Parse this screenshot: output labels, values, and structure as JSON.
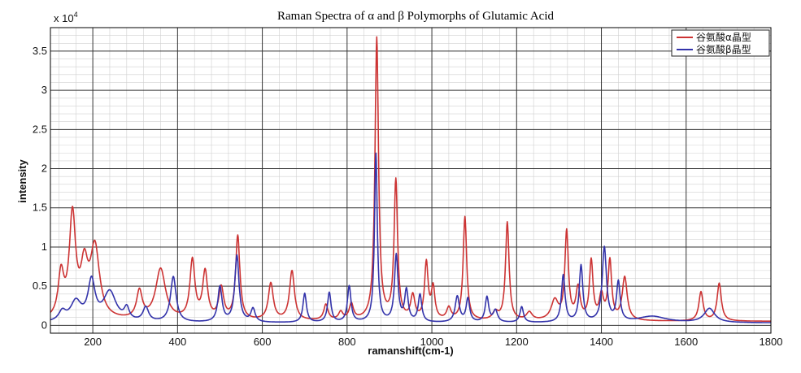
{
  "chart_data": {
    "type": "line",
    "title": "Raman Spectra of α and β Polymorphs of Glutamic Acid",
    "xlabel": "ramanshift(cm-1)",
    "ylabel": "intensity",
    "y_multiplier": "x 10",
    "y_multiplier_exp": "4",
    "xlim": [
      100,
      1800
    ],
    "ylim": [
      -0.1,
      3.8
    ],
    "x_ticks": [
      200,
      400,
      600,
      800,
      1000,
      1200,
      1400,
      1600,
      1800
    ],
    "y_ticks": [
      0,
      0.5,
      1,
      1.5,
      2,
      2.5,
      3,
      3.5
    ],
    "y_tick_labels": [
      "0",
      "0.5",
      "1",
      "1.5",
      "2",
      "2.5",
      "3",
      "3.5"
    ],
    "grid": true,
    "legend_position": "top-right",
    "series": [
      {
        "name": "谷氨酸α晶型",
        "color": "#cc3333",
        "baseline": 0.05,
        "peaks": [
          [
            125,
            0.55,
            8
          ],
          [
            152,
            1.3,
            9
          ],
          [
            180,
            0.6,
            10
          ],
          [
            205,
            0.9,
            13
          ],
          [
            310,
            0.35,
            8
          ],
          [
            360,
            0.65,
            14
          ],
          [
            435,
            0.75,
            7
          ],
          [
            465,
            0.6,
            7
          ],
          [
            503,
            0.4,
            7
          ],
          [
            542,
            1.07,
            6
          ],
          [
            620,
            0.47,
            7
          ],
          [
            670,
            0.63,
            7
          ],
          [
            750,
            0.2,
            6
          ],
          [
            785,
            0.1,
            6
          ],
          [
            810,
            0.2,
            6
          ],
          [
            870,
            3.6,
            5
          ],
          [
            915,
            1.77,
            5
          ],
          [
            955,
            0.3,
            6
          ],
          [
            987,
            0.72,
            5
          ],
          [
            1003,
            0.4,
            5
          ],
          [
            1040,
            0.15,
            6
          ],
          [
            1078,
            1.32,
            5
          ],
          [
            1150,
            0.1,
            8
          ],
          [
            1178,
            1.25,
            5
          ],
          [
            1230,
            0.1,
            8
          ],
          [
            1290,
            0.25,
            10
          ],
          [
            1318,
            1.12,
            5
          ],
          [
            1345,
            0.4,
            6
          ],
          [
            1376,
            0.75,
            5
          ],
          [
            1400,
            0.3,
            6
          ],
          [
            1420,
            0.75,
            5
          ],
          [
            1455,
            0.55,
            7
          ],
          [
            1635,
            0.37,
            6
          ],
          [
            1678,
            0.48,
            6
          ]
        ]
      },
      {
        "name": "谷氨酸β晶型",
        "color": "#3333aa",
        "baseline": 0.03,
        "peaks": [
          [
            128,
            0.12,
            10
          ],
          [
            160,
            0.25,
            15
          ],
          [
            197,
            0.5,
            10
          ],
          [
            240,
            0.38,
            18
          ],
          [
            280,
            0.15,
            7
          ],
          [
            325,
            0.18,
            8
          ],
          [
            390,
            0.58,
            8
          ],
          [
            500,
            0.45,
            6
          ],
          [
            540,
            0.85,
            6
          ],
          [
            578,
            0.17,
            6
          ],
          [
            700,
            0.37,
            5
          ],
          [
            758,
            0.38,
            5
          ],
          [
            805,
            0.46,
            5
          ],
          [
            868,
            2.15,
            4
          ],
          [
            916,
            0.85,
            5
          ],
          [
            940,
            0.4,
            5
          ],
          [
            972,
            0.35,
            5
          ],
          [
            1060,
            0.33,
            6
          ],
          [
            1085,
            0.3,
            5
          ],
          [
            1130,
            0.32,
            5
          ],
          [
            1150,
            0.15,
            6
          ],
          [
            1212,
            0.2,
            5
          ],
          [
            1310,
            0.6,
            5
          ],
          [
            1352,
            0.72,
            5
          ],
          [
            1407,
            0.95,
            6
          ],
          [
            1440,
            0.5,
            5
          ],
          [
            1520,
            0.08,
            40
          ],
          [
            1655,
            0.18,
            15
          ]
        ]
      }
    ]
  }
}
